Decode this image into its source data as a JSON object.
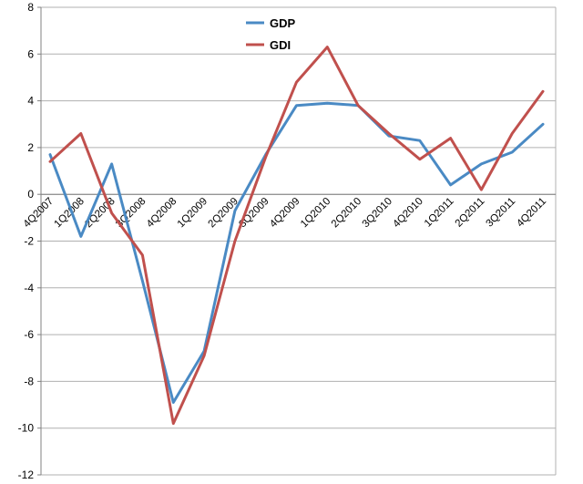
{
  "chart_data": {
    "type": "line",
    "title": "",
    "xlabel": "",
    "ylabel": "",
    "ylim": [
      -12,
      8
    ],
    "y_ticks": [
      8,
      6,
      4,
      2,
      0,
      -2,
      -4,
      -6,
      -8,
      -10,
      -12
    ],
    "grid": true,
    "legend_position": "top-center",
    "categories": [
      "4Q2007",
      "1Q2008",
      "2Q2008",
      "3Q2008",
      "4Q2008",
      "1Q2009",
      "2Q2009",
      "3Q2009",
      "4Q2009",
      "1Q2010",
      "2Q2010",
      "3Q2010",
      "4Q2010",
      "1Q2011",
      "2Q2011",
      "3Q2011",
      "4Q2011"
    ],
    "series": [
      {
        "name": "GDP",
        "color": "#4A8AC4",
        "values": [
          1.7,
          -1.8,
          1.3,
          -3.7,
          -8.9,
          -6.7,
          -0.7,
          1.7,
          3.8,
          3.9,
          3.8,
          2.5,
          2.3,
          0.4,
          1.3,
          1.8,
          3.0
        ]
      },
      {
        "name": "GDI",
        "color": "#C0504D",
        "values": [
          1.4,
          2.6,
          -0.8,
          -2.6,
          -9.8,
          -6.9,
          -2.0,
          1.6,
          4.8,
          6.3,
          3.8,
          2.6,
          1.5,
          2.4,
          0.2,
          2.6,
          4.4
        ]
      }
    ]
  }
}
